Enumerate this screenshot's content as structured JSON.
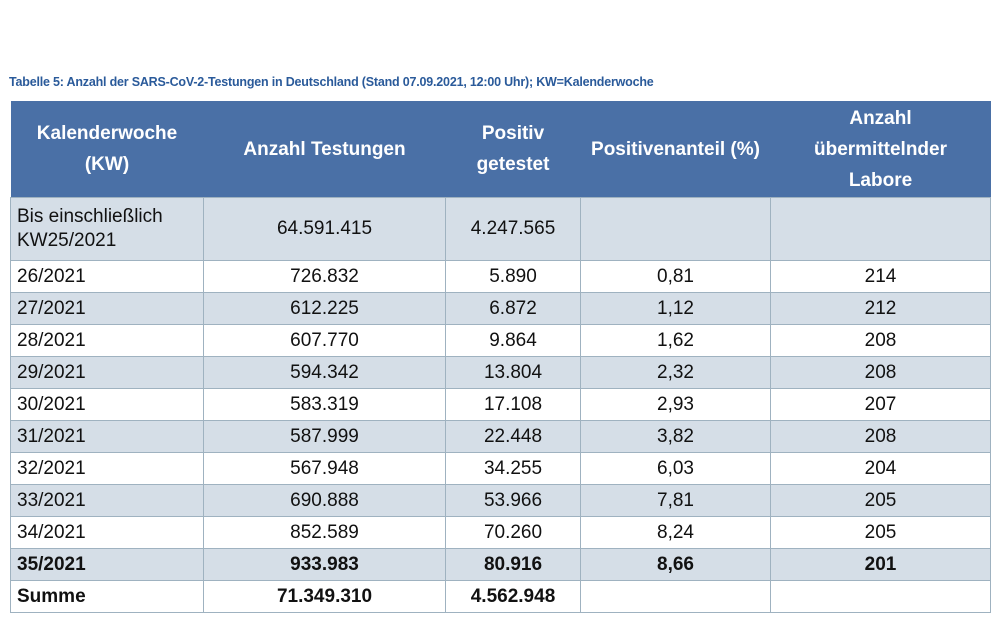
{
  "caption": "Tabelle 5: Anzahl der SARS-CoV-2-Testungen in Deutschland (Stand 07.09.2021, 12:00 Uhr); KW=Kalenderwoche",
  "headers": [
    "Kalenderwoche (KW)",
    "Anzahl Testungen",
    "Positiv getestet",
    "Positivenanteil (%)",
    "Anzahl übermittelnder Labore"
  ],
  "rows": [
    {
      "kw": "Bis einschließlich KW25/2021",
      "tests": "64.591.415",
      "positive": "4.247.565",
      "share": "",
      "labs": ""
    },
    {
      "kw": "26/2021",
      "tests": "726.832",
      "positive": "5.890",
      "share": "0,81",
      "labs": "214"
    },
    {
      "kw": "27/2021",
      "tests": "612.225",
      "positive": "6.872",
      "share": "1,12",
      "labs": "212"
    },
    {
      "kw": "28/2021",
      "tests": "607.770",
      "positive": "9.864",
      "share": "1,62",
      "labs": "208"
    },
    {
      "kw": "29/2021",
      "tests": "594.342",
      "positive": "13.804",
      "share": "2,32",
      "labs": "208"
    },
    {
      "kw": "30/2021",
      "tests": "583.319",
      "positive": "17.108",
      "share": "2,93",
      "labs": "207"
    },
    {
      "kw": "31/2021",
      "tests": "587.999",
      "positive": "22.448",
      "share": "3,82",
      "labs": "208"
    },
    {
      "kw": "32/2021",
      "tests": "567.948",
      "positive": "34.255",
      "share": "6,03",
      "labs": "204"
    },
    {
      "kw": "33/2021",
      "tests": "690.888",
      "positive": "53.966",
      "share": "7,81",
      "labs": "205"
    },
    {
      "kw": "34/2021",
      "tests": "852.589",
      "positive": "70.260",
      "share": "8,24",
      "labs": "205"
    },
    {
      "kw": "35/2021",
      "tests": "933.983",
      "positive": "80.916",
      "share": "8,66",
      "labs": "201"
    },
    {
      "kw": "Summe",
      "tests": "71.349.310",
      "positive": "4.562.948",
      "share": "",
      "labs": ""
    }
  ]
}
